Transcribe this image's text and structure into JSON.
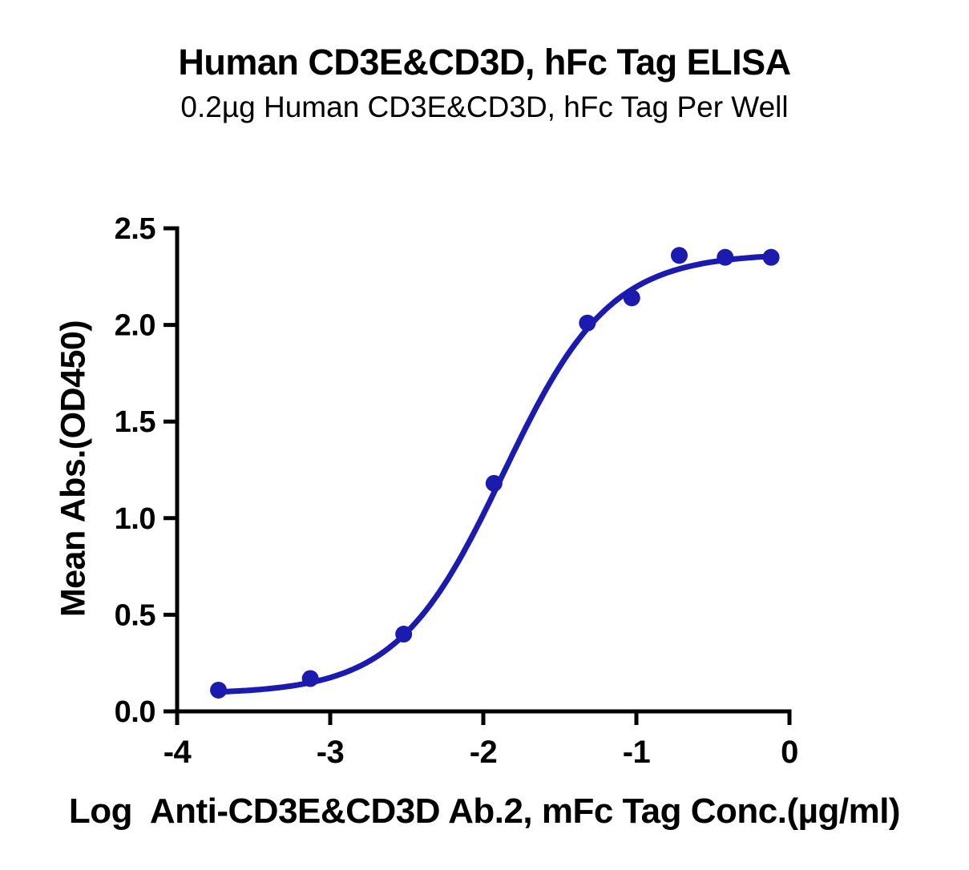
{
  "chart_data": {
    "type": "scatter",
    "title": "Human CD3E&CD3D, hFc Tag ELISA",
    "subtitle": "0.2µg Human CD3E&CD3D, hFc Tag Per Well",
    "xlabel": "Log  Anti-CD3E&CD3D Ab.2, mFc Tag Conc.(µg/ml)",
    "ylabel": "Mean Abs.(OD450)",
    "xlim": [
      -4,
      0
    ],
    "ylim": [
      0,
      2.5
    ],
    "x_ticks": [
      -4,
      -3,
      -2,
      -1,
      0
    ],
    "x_tick_labels": [
      "-4",
      "-3",
      "-2",
      "-1",
      "0"
    ],
    "y_ticks": [
      0,
      0.5,
      1,
      1.5,
      2,
      2.5
    ],
    "y_tick_labels": [
      "0.0",
      "0.5",
      "1.0",
      "1.5",
      "2.0",
      "2.5"
    ],
    "grid": false,
    "legend": "none",
    "series": [
      {
        "color": "#1b1bb0",
        "marker": "circle",
        "points": [
          {
            "x": -3.73,
            "y": 0.11
          },
          {
            "x": -3.13,
            "y": 0.17
          },
          {
            "x": -2.52,
            "y": 0.4
          },
          {
            "x": -1.93,
            "y": 1.18
          },
          {
            "x": -1.32,
            "y": 2.01
          },
          {
            "x": -1.03,
            "y": 2.14
          },
          {
            "x": -0.72,
            "y": 2.36
          },
          {
            "x": -0.42,
            "y": 2.35
          },
          {
            "x": -0.12,
            "y": 2.35
          }
        ],
        "fit_curve": {
          "model": "4PL-sigmoid",
          "bottom": 0.09,
          "top": 2.37,
          "logEC50": -1.87,
          "hill": 1.25
        }
      }
    ],
    "colors": {
      "curve": "#1b1bb0",
      "axis": "#000000",
      "text": "#000000",
      "background": "#ffffff"
    }
  }
}
